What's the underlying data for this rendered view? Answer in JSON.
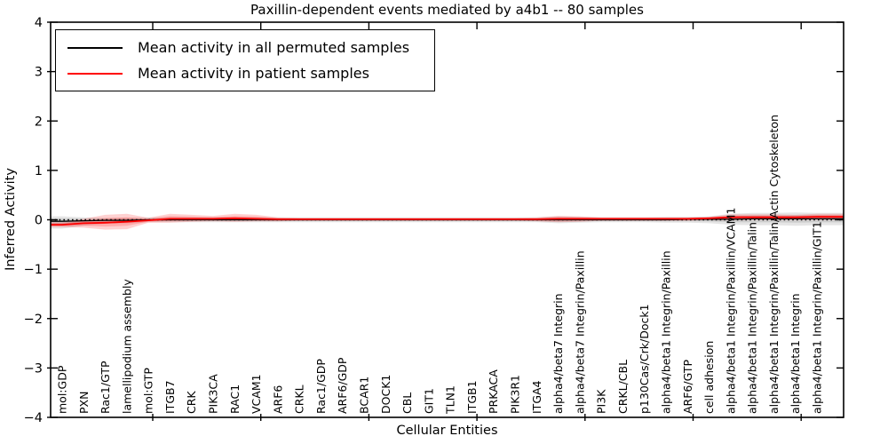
{
  "figure": {
    "title": "Paxillin-dependent events mediated by a4b1 -- 80 samples",
    "xlabel": "Cellular Entities",
    "ylabel": "Inferred Activity"
  },
  "legend": {
    "entries": [
      {
        "label": "Mean activity in all permuted samples",
        "color": "#000000"
      },
      {
        "label": "Mean activity in patient samples",
        "color": "#ff0000"
      }
    ]
  },
  "chart_data": {
    "type": "line",
    "title": "Paxillin-dependent events mediated by a4b1 -- 80 samples",
    "xlabel": "Cellular Entities",
    "ylabel": "Inferred Activity",
    "ylim": [
      -4,
      4
    ],
    "yticks": [
      -4,
      -3,
      -2,
      -1,
      0,
      1,
      2,
      3,
      4
    ],
    "yticklabels": [
      "−4",
      "−3",
      "−2",
      "−1",
      "0",
      "1",
      "2",
      "3",
      "4"
    ],
    "grid": false,
    "legend_position": "upper left",
    "zero_line": {
      "y": 0,
      "style": "dotted",
      "color": "#000000"
    },
    "categories": [
      "mol:GDP",
      "PXN",
      "Rac1/GTP",
      "lamellipodium assembly",
      "mol:GTP",
      "ITGB7",
      "CRK",
      "PIK3CA",
      "RAC1",
      "VCAM1",
      "ARF6",
      "CRKL",
      "Rac1/GDP",
      "ARF6/GDP",
      "BCAR1",
      "DOCK1",
      "CBL",
      "GIT1",
      "TLN1",
      "ITGB1",
      "PRKACA",
      "PIK3R1",
      "ITGA4",
      "alpha4/beta7 Integrin",
      "alpha4/beta7 Integrin/Paxillin",
      "PI3K",
      "CRKL/CBL",
      "p130Cas/Crk/Dock1",
      "alpha4/beta1 Integrin/Paxillin",
      "ARF6/GTP",
      "cell adhesion",
      "alpha4/beta1 Integrin/Paxillin/VCAM1",
      "alpha4/beta1 Integrin/Paxillin/Talin",
      "alpha4/beta1 Integrin/Paxillin/Talin/Actin Cytoskeleton",
      "alpha4/beta1 Integrin",
      "alpha4/beta1 Integrin/Paxillin/GIT1"
    ],
    "series": [
      {
        "name": "Mean activity in all permuted samples",
        "color": "#000000",
        "band_color": "rgba(0,0,0,0.10)",
        "values": [
          -0.03,
          -0.02,
          -0.01,
          -0.01,
          0,
          0,
          0,
          0,
          0,
          0,
          0,
          0,
          0,
          0,
          0,
          0,
          0,
          0,
          0,
          0,
          0,
          0,
          0,
          0,
          0,
          0,
          0,
          0,
          0,
          0.01,
          0.01,
          0.01,
          0.02,
          0.02,
          0.02,
          0.02
        ],
        "band_upper": [
          0.07,
          0.05,
          0.04,
          0.04,
          0.05,
          0.05,
          0.05,
          0.05,
          0.05,
          0.05,
          0.05,
          0.05,
          0.05,
          0.05,
          0.05,
          0.05,
          0.05,
          0.05,
          0.05,
          0.05,
          0.05,
          0.05,
          0.05,
          0.07,
          0.06,
          0.05,
          0.05,
          0.05,
          0.06,
          0.06,
          0.07,
          0.12,
          0.14,
          0.14,
          0.15,
          0.14
        ],
        "band_lower": [
          -0.18,
          -0.12,
          -0.08,
          -0.07,
          -0.05,
          -0.05,
          -0.05,
          -0.05,
          -0.05,
          -0.05,
          -0.05,
          -0.05,
          -0.05,
          -0.05,
          -0.05,
          -0.05,
          -0.05,
          -0.05,
          -0.05,
          -0.05,
          -0.05,
          -0.05,
          -0.05,
          -0.07,
          -0.06,
          -0.05,
          -0.05,
          -0.05,
          -0.06,
          -0.06,
          -0.07,
          -0.1,
          -0.11,
          -0.11,
          -0.12,
          -0.11
        ]
      },
      {
        "name": "Mean activity in patient samples",
        "color": "#ff0000",
        "band_color": "rgba(255,0,0,0.18)",
        "values": [
          -0.1,
          -0.07,
          -0.06,
          -0.04,
          -0.01,
          0.02,
          0.02,
          0.02,
          0.03,
          0.02,
          0.01,
          0.01,
          0.01,
          0.01,
          0.01,
          0.01,
          0.01,
          0.01,
          0.01,
          0.01,
          0.01,
          0.01,
          0.01,
          0.02,
          0.02,
          0.02,
          0.02,
          0.02,
          0.02,
          0.02,
          0.03,
          0.05,
          0.05,
          0.05,
          0.05,
          0.06
        ],
        "band_upper": [
          -0.05,
          0.02,
          0.1,
          0.12,
          0.04,
          0.12,
          0.1,
          0.08,
          0.12,
          0.1,
          0.05,
          0.04,
          0.04,
          0.04,
          0.04,
          0.04,
          0.04,
          0.04,
          0.04,
          0.04,
          0.04,
          0.04,
          0.05,
          0.08,
          0.07,
          0.05,
          0.05,
          0.05,
          0.05,
          0.05,
          0.06,
          0.11,
          0.11,
          0.11,
          0.1,
          0.12
        ],
        "band_lower": [
          -0.15,
          -0.16,
          -0.2,
          -0.19,
          -0.06,
          -0.06,
          -0.04,
          -0.03,
          -0.04,
          -0.03,
          -0.03,
          -0.02,
          -0.02,
          -0.02,
          -0.02,
          -0.02,
          -0.02,
          -0.02,
          -0.02,
          -0.02,
          -0.02,
          -0.02,
          -0.03,
          -0.05,
          -0.04,
          -0.02,
          -0.02,
          -0.02,
          -0.02,
          -0.02,
          -0.01,
          -0.01,
          0.0,
          0.0,
          0.0,
          0.0
        ]
      }
    ]
  }
}
